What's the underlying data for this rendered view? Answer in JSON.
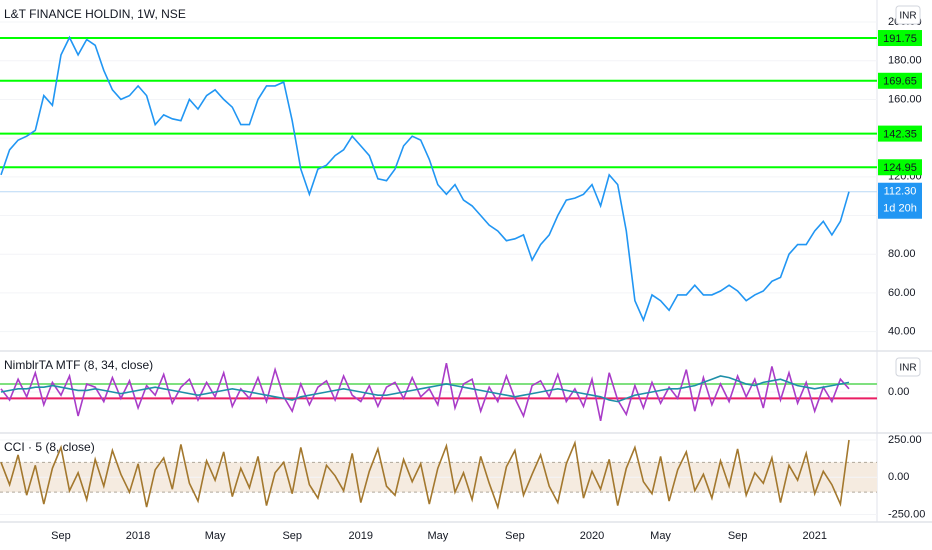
{
  "chart_data": [
    {
      "type": "line",
      "title": "L&T FINANCE HOLDIN, 1W, NSE",
      "currency": "INR",
      "categories": [
        null,
        null,
        null,
        null,
        null,
        null,
        null,
        "Sep",
        null,
        null,
        null,
        null,
        null,
        null,
        null,
        null,
        "2018",
        null,
        null,
        null,
        null,
        null,
        null,
        null,
        null,
        "May",
        null,
        null,
        null,
        null,
        null,
        null,
        null,
        null,
        "Sep",
        null,
        null,
        null,
        null,
        null,
        null,
        null,
        "2019",
        null,
        null,
        null,
        null,
        null,
        null,
        null,
        null,
        "May",
        null,
        null,
        null,
        null,
        null,
        null,
        null,
        null,
        "Sep",
        null,
        null,
        null,
        null,
        null,
        null,
        null,
        null,
        "2020",
        null,
        null,
        null,
        null,
        null,
        null,
        null,
        "May",
        null,
        null,
        null,
        null,
        null,
        null,
        null,
        null,
        "Sep",
        null,
        null,
        null,
        null,
        null,
        null,
        null,
        null,
        "2021",
        null,
        null,
        null,
        null
      ],
      "series": [
        {
          "color": "#2196f3",
          "values": [
            121,
            134,
            139,
            141,
            144,
            162,
            157,
            183,
            192,
            183,
            191,
            188,
            175,
            165,
            160,
            162,
            167,
            162,
            147,
            152,
            150,
            149,
            160,
            155,
            162,
            165,
            160,
            156,
            147,
            147,
            160,
            167,
            167,
            169,
            149,
            124,
            111,
            124,
            126,
            131,
            134,
            141,
            136,
            131,
            119,
            118,
            124,
            136,
            141,
            139,
            129,
            116,
            111,
            116,
            108,
            105,
            100,
            95,
            92,
            87,
            88,
            90,
            77,
            85,
            90,
            100,
            108,
            109,
            111,
            116,
            105,
            121,
            116,
            92,
            56,
            46,
            59,
            56,
            51,
            59,
            59,
            64,
            59,
            59,
            61,
            64,
            61,
            56,
            59,
            61,
            66,
            68,
            80,
            85,
            85,
            92,
            97,
            90,
            97,
            112.3
          ]
        }
      ],
      "ylim": [
        30.5,
        211.4
      ],
      "yticks": [
        {
          "value": 200,
          "label": "200.00"
        },
        {
          "value": 180,
          "label": "180.00"
        },
        {
          "value": 160,
          "label": "160.00"
        },
        {
          "value": 140,
          "label": "140.00"
        },
        {
          "value": 120,
          "label": "120.00"
        },
        {
          "value": 100,
          "label": "100.00"
        },
        {
          "value": 80,
          "label": "80.00"
        },
        {
          "value": 60,
          "label": "60.00"
        },
        {
          "value": 40,
          "label": "40.00"
        }
      ],
      "levels": [
        191.75,
        169.65,
        142.35,
        124.95
      ],
      "level_colors": [
        "#00ff00",
        "#00ff00",
        "#00ff00",
        "#00ff00"
      ],
      "level_tags": true,
      "last_price": {
        "value": 112.3,
        "label": "112.30"
      },
      "countdown": "1d 20h",
      "last_color": "#2196f3"
    },
    {
      "type": "line",
      "title": "NimblrTA MTF (8, 34, close)",
      "currency": "INR",
      "series": [
        {
          "color": "#a93cc8",
          "values": [
            2,
            -5,
            8,
            -3,
            12,
            -8,
            6,
            -2,
            10,
            -15,
            5,
            3,
            -6,
            9,
            -4,
            7,
            -10,
            4,
            -2,
            11,
            -7,
            3,
            8,
            -5,
            6,
            -3,
            12,
            -9,
            2,
            -4,
            9,
            -6,
            14,
            -3,
            -12,
            5,
            -8,
            3,
            7,
            -5,
            10,
            -2,
            -6,
            4,
            -9,
            3,
            6,
            -4,
            9,
            -3,
            2,
            -8,
            18,
            -10,
            5,
            8,
            -12,
            3,
            -6,
            10,
            -4,
            -15,
            4,
            7,
            -3,
            11,
            -6,
            2,
            -9,
            8,
            -18,
            12,
            -5,
            -14,
            4,
            -10,
            6,
            -7,
            3,
            -4,
            14,
            -12,
            9,
            -8,
            5,
            -6,
            10,
            -3,
            8,
            -10,
            16,
            -5,
            12,
            -7,
            6,
            -12,
            3,
            -6,
            8,
            2
          ]
        },
        {
          "color": "#1e8fa8",
          "values": [
            0,
            1,
            2,
            2,
            3,
            3,
            4,
            3,
            2,
            1,
            1,
            2,
            1,
            0,
            -1,
            0,
            1,
            2,
            3,
            2,
            1,
            0,
            -1,
            -2,
            -1,
            0,
            1,
            2,
            1,
            0,
            -1,
            -2,
            -3,
            -4,
            -5,
            -3,
            -2,
            -1,
            0,
            1,
            2,
            1,
            0,
            -1,
            -2,
            -2,
            -1,
            0,
            1,
            2,
            3,
            4,
            5,
            4,
            3,
            2,
            1,
            0,
            -1,
            -2,
            -3,
            -2,
            -1,
            0,
            1,
            2,
            1,
            0,
            -1,
            -2,
            -3,
            -5,
            -6,
            -4,
            -2,
            -1,
            0,
            1,
            2,
            2,
            3,
            4,
            6,
            8,
            10,
            9,
            7,
            5,
            4,
            6,
            7,
            8,
            6,
            4,
            3,
            2,
            3,
            4,
            5,
            6
          ]
        }
      ],
      "ylim": [
        -25,
        25
      ],
      "yticks": [
        {
          "value": 0,
          "label": "0.00"
        }
      ],
      "levels": [
        5,
        -4
      ],
      "level_colors": [
        "#7fe07f",
        "#e91e63"
      ]
    },
    {
      "type": "line",
      "title": "CCI · 5 (8, close)",
      "series": [
        {
          "color": "#a3782e",
          "values": [
            100,
            -50,
            150,
            -120,
            80,
            -180,
            60,
            200,
            -90,
            30,
            -150,
            120,
            -60,
            180,
            20,
            -100,
            90,
            -200,
            50,
            130,
            -80,
            220,
            -40,
            -160,
            110,
            -20,
            170,
            -130,
            60,
            -70,
            140,
            -190,
            30,
            100,
            -110,
            200,
            -50,
            -140,
            80,
            10,
            -90,
            160,
            -170,
            40,
            190,
            -60,
            -120,
            120,
            -30,
            90,
            -180,
            60,
            210,
            -100,
            30,
            -150,
            140,
            -40,
            -200,
            70,
            180,
            -120,
            20,
            150,
            -60,
            -170,
            90,
            230,
            -140,
            40,
            -80,
            120,
            -190,
            60,
            200,
            -30,
            -110,
            140,
            -160,
            50,
            170,
            -90,
            20,
            -140,
            110,
            -60,
            190,
            -120,
            30,
            -40,
            130,
            -170,
            80,
            -20,
            160,
            -110,
            40,
            -50,
            -180,
            250
          ]
        }
      ],
      "ylim": [
        -300,
        290
      ],
      "yticks": [
        {
          "value": 250,
          "label": "250.00"
        },
        {
          "value": 0,
          "label": "0.00"
        },
        {
          "value": -250,
          "label": "-250.00"
        }
      ],
      "band": [
        -100,
        100
      ],
      "band_color": "#f5ebe0"
    }
  ]
}
